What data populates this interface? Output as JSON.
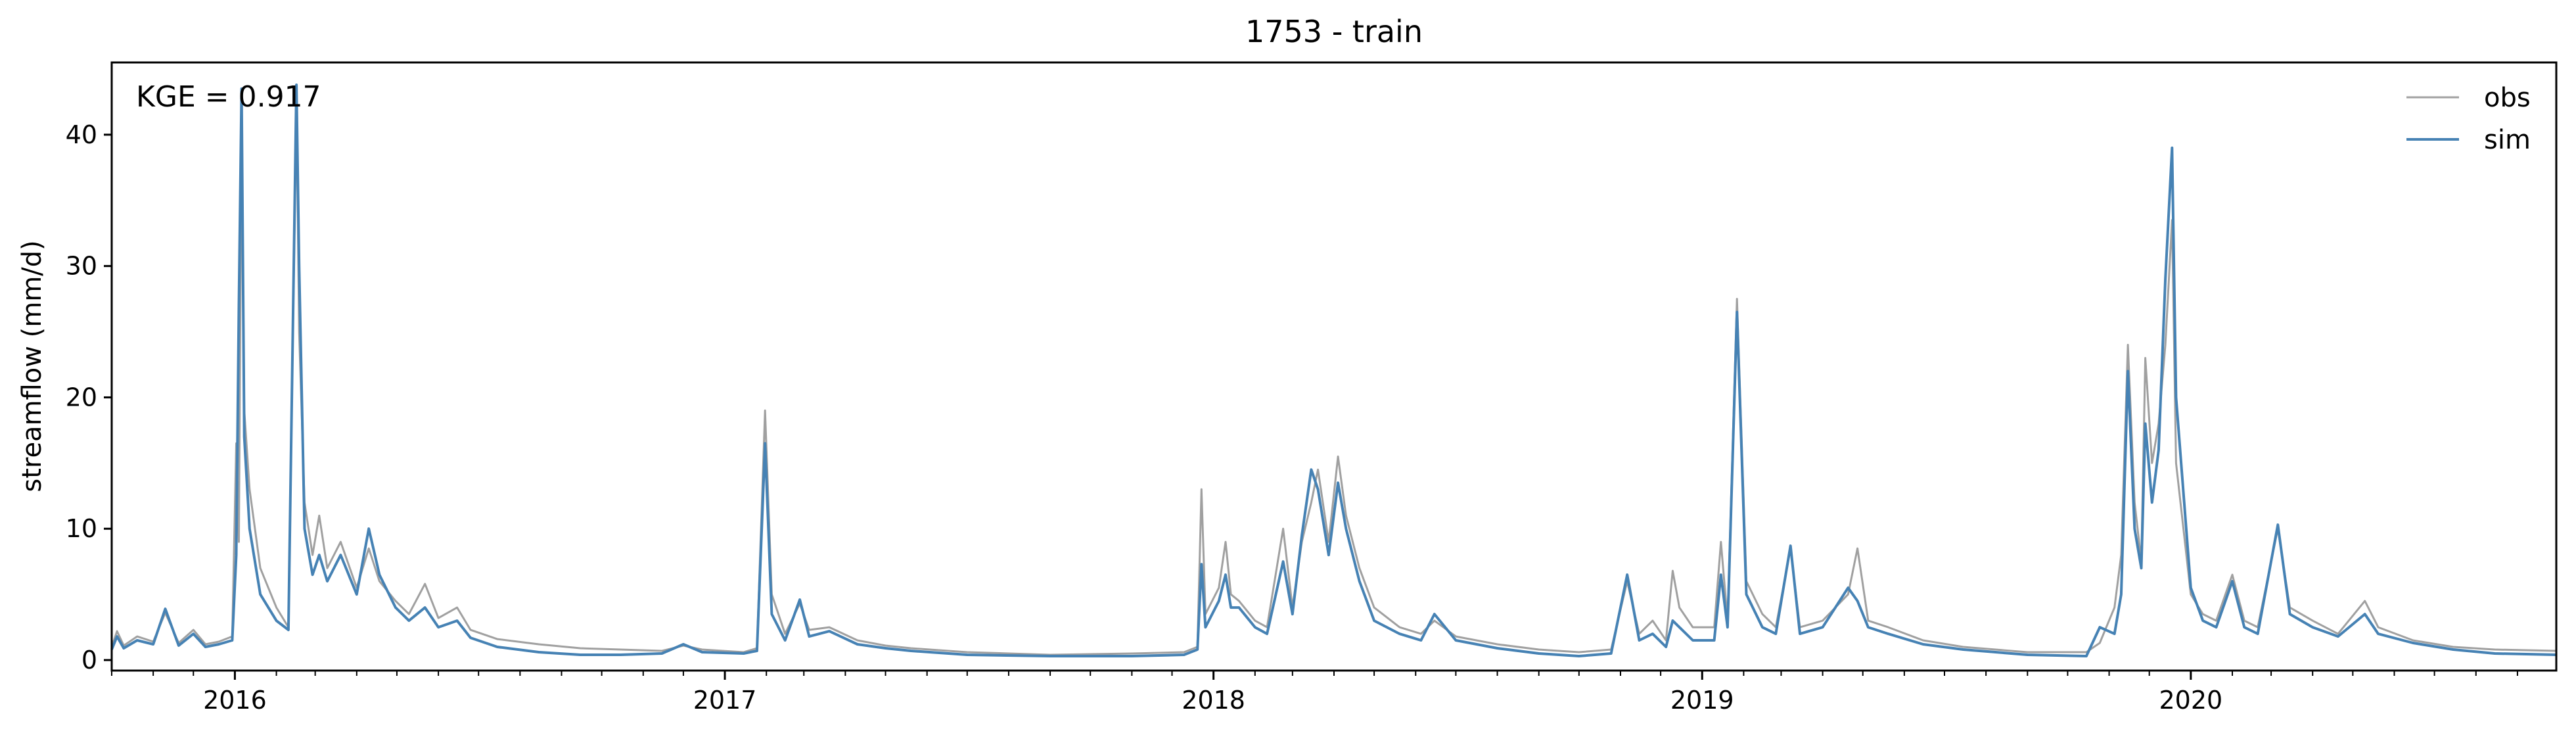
{
  "chart_data": {
    "type": "line",
    "title": "1753 - train",
    "xlabel": "",
    "ylabel": "streamflow (mm/d)",
    "xlim": [
      "2015-10-01",
      "2020-09-30"
    ],
    "ylim": [
      -0.8,
      45.5
    ],
    "yticks": [
      0,
      10,
      20,
      30,
      40
    ],
    "xticks": [
      {
        "date": "2016-01-01",
        "label": "2016"
      },
      {
        "date": "2017-01-01",
        "label": "2017"
      },
      {
        "date": "2018-01-01",
        "label": "2018"
      },
      {
        "date": "2019-01-01",
        "label": "2019"
      },
      {
        "date": "2020-01-01",
        "label": "2020"
      }
    ],
    "grid": false,
    "legend_position": "top-right",
    "annotation": "KGE = 0.917",
    "series": [
      {
        "name": "obs",
        "color": "#a0a0a0",
        "points": [
          [
            "2015-10-01",
            1.0
          ],
          [
            "2015-10-05",
            2.2
          ],
          [
            "2015-10-10",
            1.1
          ],
          [
            "2015-10-20",
            1.8
          ],
          [
            "2015-11-01",
            1.4
          ],
          [
            "2015-11-10",
            3.6
          ],
          [
            "2015-11-20",
            1.3
          ],
          [
            "2015-12-01",
            2.3
          ],
          [
            "2015-12-10",
            1.2
          ],
          [
            "2015-12-20",
            1.4
          ],
          [
            "2015-12-30",
            1.8
          ],
          [
            "2016-01-02",
            16.5
          ],
          [
            "2016-01-04",
            9.0
          ],
          [
            "2016-01-06",
            42.0
          ],
          [
            "2016-01-08",
            19.0
          ],
          [
            "2016-01-12",
            13.0
          ],
          [
            "2016-01-20",
            7.0
          ],
          [
            "2016-02-01",
            4.0
          ],
          [
            "2016-02-10",
            2.5
          ],
          [
            "2016-02-16",
            42.5
          ],
          [
            "2016-02-18",
            25.0
          ],
          [
            "2016-02-22",
            12.0
          ],
          [
            "2016-02-28",
            8.0
          ],
          [
            "2016-03-04",
            11.0
          ],
          [
            "2016-03-10",
            7.0
          ],
          [
            "2016-03-20",
            9.0
          ],
          [
            "2016-04-01",
            5.5
          ],
          [
            "2016-04-10",
            8.5
          ],
          [
            "2016-04-18",
            6.0
          ],
          [
            "2016-04-30",
            4.5
          ],
          [
            "2016-05-10",
            3.5
          ],
          [
            "2016-05-22",
            5.8
          ],
          [
            "2016-06-01",
            3.2
          ],
          [
            "2016-06-15",
            4.0
          ],
          [
            "2016-06-25",
            2.3
          ],
          [
            "2016-07-15",
            1.6
          ],
          [
            "2016-08-15",
            1.2
          ],
          [
            "2016-09-15",
            0.9
          ],
          [
            "2016-10-15",
            0.8
          ],
          [
            "2016-11-15",
            0.7
          ],
          [
            "2016-12-01",
            1.1
          ],
          [
            "2016-12-15",
            0.8
          ],
          [
            "2017-01-15",
            0.6
          ],
          [
            "2017-01-25",
            0.9
          ],
          [
            "2017-01-31",
            19.0
          ],
          [
            "2017-02-05",
            5.0
          ],
          [
            "2017-02-15",
            2.0
          ],
          [
            "2017-02-26",
            4.3
          ],
          [
            "2017-03-05",
            2.3
          ],
          [
            "2017-03-20",
            2.5
          ],
          [
            "2017-04-10",
            1.5
          ],
          [
            "2017-05-01",
            1.1
          ],
          [
            "2017-05-20",
            0.9
          ],
          [
            "2017-07-01",
            0.6
          ],
          [
            "2017-09-01",
            0.4
          ],
          [
            "2017-11-01",
            0.5
          ],
          [
            "2017-12-10",
            0.6
          ],
          [
            "2017-12-20",
            1.0
          ],
          [
            "2017-12-23",
            13.0
          ],
          [
            "2017-12-26",
            3.5
          ],
          [
            "2018-01-05",
            5.5
          ],
          [
            "2018-01-10",
            9.0
          ],
          [
            "2018-01-14",
            5.0
          ],
          [
            "2018-01-20",
            4.5
          ],
          [
            "2018-02-01",
            3.0
          ],
          [
            "2018-02-10",
            2.5
          ],
          [
            "2018-02-22",
            10.0
          ],
          [
            "2018-03-01",
            4.0
          ],
          [
            "2018-03-08",
            9.0
          ],
          [
            "2018-03-15",
            12.0
          ],
          [
            "2018-03-20",
            14.5
          ],
          [
            "2018-03-28",
            9.0
          ],
          [
            "2018-04-04",
            15.5
          ],
          [
            "2018-04-10",
            11.0
          ],
          [
            "2018-04-20",
            7.0
          ],
          [
            "2018-05-01",
            4.0
          ],
          [
            "2018-05-20",
            2.5
          ],
          [
            "2018-06-05",
            2.0
          ],
          [
            "2018-06-15",
            3.0
          ],
          [
            "2018-07-01",
            1.8
          ],
          [
            "2018-08-01",
            1.2
          ],
          [
            "2018-09-01",
            0.8
          ],
          [
            "2018-10-01",
            0.6
          ],
          [
            "2018-10-25",
            0.8
          ],
          [
            "2018-11-06",
            6.0
          ],
          [
            "2018-11-15",
            2.0
          ],
          [
            "2018-11-25",
            3.0
          ],
          [
            "2018-12-05",
            1.5
          ],
          [
            "2018-12-10",
            6.8
          ],
          [
            "2018-12-15",
            4.0
          ],
          [
            "2018-12-25",
            2.5
          ],
          [
            "2019-01-10",
            2.5
          ],
          [
            "2019-01-15",
            9.0
          ],
          [
            "2019-01-20",
            3.0
          ],
          [
            "2019-01-27",
            27.5
          ],
          [
            "2019-02-03",
            6.0
          ],
          [
            "2019-02-15",
            3.5
          ],
          [
            "2019-02-25",
            2.5
          ],
          [
            "2019-03-08",
            8.5
          ],
          [
            "2019-03-15",
            2.5
          ],
          [
            "2019-04-01",
            3.0
          ],
          [
            "2019-04-20",
            5.0
          ],
          [
            "2019-04-27",
            8.5
          ],
          [
            "2019-05-05",
            3.0
          ],
          [
            "2019-05-20",
            2.5
          ],
          [
            "2019-06-15",
            1.5
          ],
          [
            "2019-07-15",
            1.0
          ],
          [
            "2019-09-01",
            0.6
          ],
          [
            "2019-10-15",
            0.6
          ],
          [
            "2019-10-25",
            1.3
          ],
          [
            "2019-11-05",
            4.0
          ],
          [
            "2019-11-10",
            8.0
          ],
          [
            "2019-11-15",
            24.0
          ],
          [
            "2019-11-20",
            12.0
          ],
          [
            "2019-11-25",
            7.5
          ],
          [
            "2019-11-28",
            23.0
          ],
          [
            "2019-12-03",
            15.0
          ],
          [
            "2019-12-08",
            18.0
          ],
          [
            "2019-12-13",
            24.0
          ],
          [
            "2019-12-18",
            33.5
          ],
          [
            "2019-12-21",
            15.0
          ],
          [
            "2020-01-01",
            5.0
          ],
          [
            "2020-01-10",
            3.5
          ],
          [
            "2020-01-20",
            3.0
          ],
          [
            "2020-02-01",
            6.5
          ],
          [
            "2020-02-10",
            3.0
          ],
          [
            "2020-02-20",
            2.5
          ],
          [
            "2020-03-06",
            10.0
          ],
          [
            "2020-03-15",
            4.0
          ],
          [
            "2020-04-01",
            3.0
          ],
          [
            "2020-04-20",
            2.0
          ],
          [
            "2020-05-10",
            4.5
          ],
          [
            "2020-05-20",
            2.5
          ],
          [
            "2020-06-15",
            1.5
          ],
          [
            "2020-07-15",
            1.0
          ],
          [
            "2020-08-15",
            0.8
          ],
          [
            "2020-09-30",
            0.7
          ]
        ]
      },
      {
        "name": "sim",
        "color": "#4682b4",
        "points": [
          [
            "2015-10-01",
            0.8
          ],
          [
            "2015-10-05",
            1.8
          ],
          [
            "2015-10-10",
            0.9
          ],
          [
            "2015-10-20",
            1.5
          ],
          [
            "2015-11-01",
            1.2
          ],
          [
            "2015-11-10",
            3.9
          ],
          [
            "2015-11-20",
            1.1
          ],
          [
            "2015-12-01",
            2.0
          ],
          [
            "2015-12-10",
            1.0
          ],
          [
            "2015-12-20",
            1.2
          ],
          [
            "2015-12-30",
            1.5
          ],
          [
            "2016-01-02",
            8.0
          ],
          [
            "2016-01-04",
            27.0
          ],
          [
            "2016-01-06",
            43.5
          ],
          [
            "2016-01-08",
            17.0
          ],
          [
            "2016-01-12",
            10.0
          ],
          [
            "2016-01-20",
            5.0
          ],
          [
            "2016-02-01",
            3.0
          ],
          [
            "2016-02-10",
            2.3
          ],
          [
            "2016-02-16",
            43.8
          ],
          [
            "2016-02-18",
            30.0
          ],
          [
            "2016-02-22",
            10.0
          ],
          [
            "2016-02-28",
            6.5
          ],
          [
            "2016-03-04",
            8.0
          ],
          [
            "2016-03-10",
            6.0
          ],
          [
            "2016-03-20",
            8.0
          ],
          [
            "2016-04-01",
            5.0
          ],
          [
            "2016-04-10",
            10.0
          ],
          [
            "2016-04-18",
            6.5
          ],
          [
            "2016-04-30",
            4.0
          ],
          [
            "2016-05-10",
            3.0
          ],
          [
            "2016-05-22",
            4.0
          ],
          [
            "2016-06-01",
            2.5
          ],
          [
            "2016-06-15",
            3.0
          ],
          [
            "2016-06-25",
            1.7
          ],
          [
            "2016-07-15",
            1.0
          ],
          [
            "2016-08-15",
            0.6
          ],
          [
            "2016-09-15",
            0.4
          ],
          [
            "2016-10-15",
            0.4
          ],
          [
            "2016-11-15",
            0.5
          ],
          [
            "2016-12-01",
            1.2
          ],
          [
            "2016-12-15",
            0.6
          ],
          [
            "2017-01-15",
            0.5
          ],
          [
            "2017-01-25",
            0.7
          ],
          [
            "2017-01-31",
            16.5
          ],
          [
            "2017-02-05",
            3.5
          ],
          [
            "2017-02-15",
            1.5
          ],
          [
            "2017-02-26",
            4.6
          ],
          [
            "2017-03-05",
            1.8
          ],
          [
            "2017-03-20",
            2.2
          ],
          [
            "2017-04-10",
            1.2
          ],
          [
            "2017-05-01",
            0.9
          ],
          [
            "2017-05-20",
            0.7
          ],
          [
            "2017-07-01",
            0.4
          ],
          [
            "2017-09-01",
            0.3
          ],
          [
            "2017-11-01",
            0.3
          ],
          [
            "2017-12-10",
            0.4
          ],
          [
            "2017-12-20",
            0.8
          ],
          [
            "2017-12-23",
            7.3
          ],
          [
            "2017-12-26",
            2.5
          ],
          [
            "2018-01-05",
            4.5
          ],
          [
            "2018-01-10",
            6.5
          ],
          [
            "2018-01-14",
            4.0
          ],
          [
            "2018-01-20",
            4.0
          ],
          [
            "2018-02-01",
            2.5
          ],
          [
            "2018-02-10",
            2.0
          ],
          [
            "2018-02-22",
            7.5
          ],
          [
            "2018-03-01",
            3.5
          ],
          [
            "2018-03-08",
            9.5
          ],
          [
            "2018-03-15",
            14.5
          ],
          [
            "2018-03-20",
            13.0
          ],
          [
            "2018-03-28",
            8.0
          ],
          [
            "2018-04-04",
            13.5
          ],
          [
            "2018-04-10",
            10.0
          ],
          [
            "2018-04-20",
            6.0
          ],
          [
            "2018-05-01",
            3.0
          ],
          [
            "2018-05-20",
            2.0
          ],
          [
            "2018-06-05",
            1.5
          ],
          [
            "2018-06-15",
            3.5
          ],
          [
            "2018-07-01",
            1.5
          ],
          [
            "2018-08-01",
            0.9
          ],
          [
            "2018-09-01",
            0.5
          ],
          [
            "2018-10-01",
            0.3
          ],
          [
            "2018-10-25",
            0.5
          ],
          [
            "2018-11-06",
            6.5
          ],
          [
            "2018-11-15",
            1.5
          ],
          [
            "2018-11-25",
            2.0
          ],
          [
            "2018-12-05",
            1.0
          ],
          [
            "2018-12-10",
            3.0
          ],
          [
            "2018-12-15",
            2.5
          ],
          [
            "2018-12-25",
            1.5
          ],
          [
            "2019-01-10",
            1.5
          ],
          [
            "2019-01-15",
            6.5
          ],
          [
            "2019-01-20",
            2.5
          ],
          [
            "2019-01-27",
            26.5
          ],
          [
            "2019-02-03",
            5.0
          ],
          [
            "2019-02-15",
            2.5
          ],
          [
            "2019-02-25",
            2.0
          ],
          [
            "2019-03-08",
            8.7
          ],
          [
            "2019-03-15",
            2.0
          ],
          [
            "2019-04-01",
            2.5
          ],
          [
            "2019-04-20",
            5.5
          ],
          [
            "2019-04-27",
            4.5
          ],
          [
            "2019-05-05",
            2.5
          ],
          [
            "2019-05-20",
            2.0
          ],
          [
            "2019-06-15",
            1.2
          ],
          [
            "2019-07-15",
            0.8
          ],
          [
            "2019-09-01",
            0.4
          ],
          [
            "2019-10-15",
            0.3
          ],
          [
            "2019-10-25",
            2.5
          ],
          [
            "2019-11-05",
            2.0
          ],
          [
            "2019-11-10",
            5.0
          ],
          [
            "2019-11-15",
            22.0
          ],
          [
            "2019-11-20",
            10.0
          ],
          [
            "2019-11-25",
            7.0
          ],
          [
            "2019-11-28",
            18.0
          ],
          [
            "2019-12-03",
            12.0
          ],
          [
            "2019-12-08",
            16.0
          ],
          [
            "2019-12-13",
            29.0
          ],
          [
            "2019-12-18",
            39.0
          ],
          [
            "2019-12-21",
            20.0
          ],
          [
            "2020-01-01",
            5.5
          ],
          [
            "2020-01-10",
            3.0
          ],
          [
            "2020-01-20",
            2.5
          ],
          [
            "2020-02-01",
            6.0
          ],
          [
            "2020-02-10",
            2.5
          ],
          [
            "2020-02-20",
            2.0
          ],
          [
            "2020-03-06",
            10.3
          ],
          [
            "2020-03-15",
            3.5
          ],
          [
            "2020-04-01",
            2.5
          ],
          [
            "2020-04-20",
            1.8
          ],
          [
            "2020-05-10",
            3.5
          ],
          [
            "2020-05-20",
            2.0
          ],
          [
            "2020-06-15",
            1.3
          ],
          [
            "2020-07-15",
            0.8
          ],
          [
            "2020-08-15",
            0.5
          ],
          [
            "2020-09-30",
            0.4
          ]
        ]
      }
    ]
  }
}
